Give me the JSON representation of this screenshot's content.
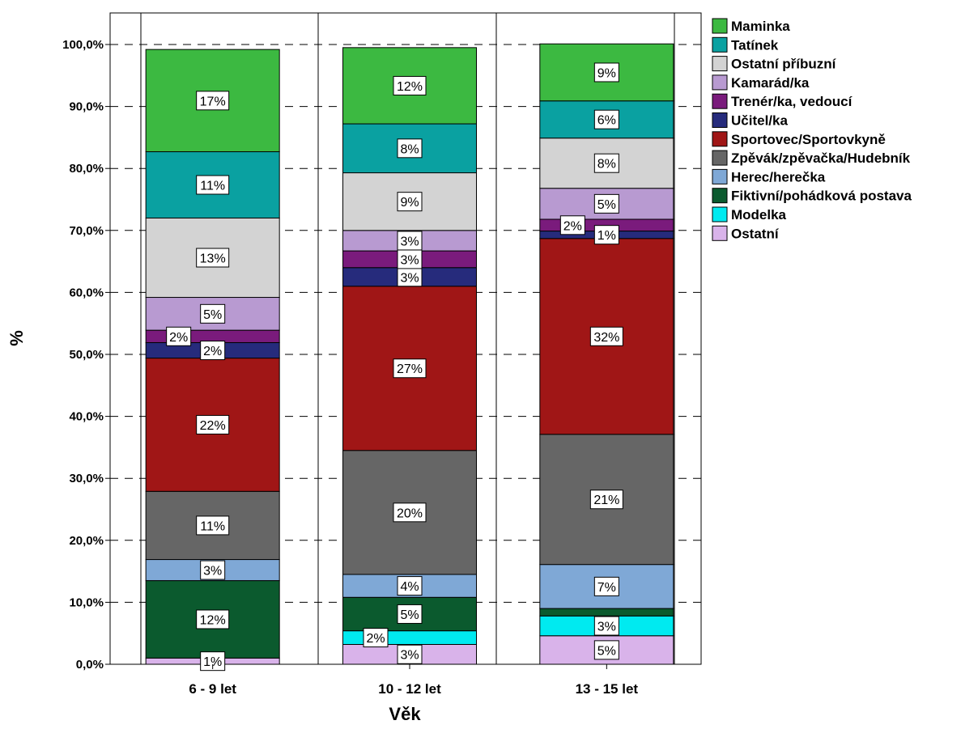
{
  "chart_data": {
    "type": "bar",
    "stacked": true,
    "xlabel": "Věk",
    "ylabel": "%",
    "ylim": [
      0,
      100
    ],
    "grid": "dashed horizontal",
    "legend_position": "right",
    "categories": [
      "6 - 9 let",
      "10 - 12 let",
      "13 - 15 let"
    ],
    "y_ticks": [
      "0,0%",
      "10,0%",
      "20,0%",
      "30,0%",
      "40,0%",
      "50,0%",
      "60,0%",
      "70,0%",
      "80,0%",
      "90,0%",
      "100,0%"
    ],
    "series": [
      {
        "name": "Ostatní",
        "color": "#d9b3ea",
        "values": [
          1.0,
          3.2,
          4.6
        ],
        "labels": [
          "1%",
          "3%",
          "5%"
        ]
      },
      {
        "name": "Modelka",
        "color": "#00eaf0",
        "values": [
          0.0,
          2.2,
          3.2
        ],
        "labels": [
          "",
          "2%",
          "3%"
        ]
      },
      {
        "name": "Fiktivní/pohádková postava",
        "color": "#0b5a2e",
        "values": [
          12.5,
          5.4,
          1.2
        ],
        "labels": [
          "12%",
          "5%",
          ""
        ]
      },
      {
        "name": "Herec/herečka",
        "color": "#7fa8d6",
        "values": [
          3.4,
          3.7,
          7.1
        ],
        "labels": [
          "3%",
          "4%",
          "7%"
        ]
      },
      {
        "name": "Zpěvák/zpěvačka/Hudebník",
        "color": "#666666",
        "values": [
          11.0,
          20.0,
          21.0
        ],
        "labels": [
          "11%",
          "20%",
          "21%"
        ]
      },
      {
        "name": "Sportovec/Sportovkyně",
        "color": "#a01616",
        "values": [
          21.5,
          26.5,
          31.6
        ],
        "labels": [
          "22%",
          "27%",
          "32%"
        ]
      },
      {
        "name": "Učitel/ka",
        "color": "#262b7c",
        "values": [
          2.5,
          3.0,
          1.2
        ],
        "labels": [
          "2%",
          "3%",
          "1%"
        ]
      },
      {
        "name": "Trenér/ka, vedoucí",
        "color": "#7a1b7c",
        "values": [
          2.0,
          2.7,
          1.9
        ],
        "labels": [
          "2%",
          "3%",
          "2%"
        ]
      },
      {
        "name": "Kamarád/ka",
        "color": "#b89ad1",
        "values": [
          5.3,
          3.3,
          5.0
        ],
        "labels": [
          "5%",
          "3%",
          "5%"
        ]
      },
      {
        "name": "Ostatní příbuzní",
        "color": "#d3d3d3",
        "values": [
          12.8,
          9.3,
          8.1
        ],
        "labels": [
          "13%",
          "9%",
          "8%"
        ]
      },
      {
        "name": "Tatínek",
        "color": "#0aa1a1",
        "values": [
          10.7,
          7.9,
          6.0
        ],
        "labels": [
          "11%",
          "8%",
          "6%"
        ]
      },
      {
        "name": "Maminka",
        "color": "#3cb941",
        "values": [
          16.5,
          12.3,
          9.2
        ],
        "labels": [
          "17%",
          "12%",
          "9%"
        ]
      }
    ],
    "legend_order": [
      "Maminka",
      "Tatínek",
      "Ostatní příbuzní",
      "Kamarád/ka",
      "Trenér/ka, vedoucí",
      "Učitel/ka",
      "Sportovec/Sportovkyně",
      "Zpěvák/zpěvačka/Hudebník",
      "Herec/herečka",
      "Fiktivní/pohádková postava",
      "Modelka",
      "Ostatní"
    ]
  }
}
